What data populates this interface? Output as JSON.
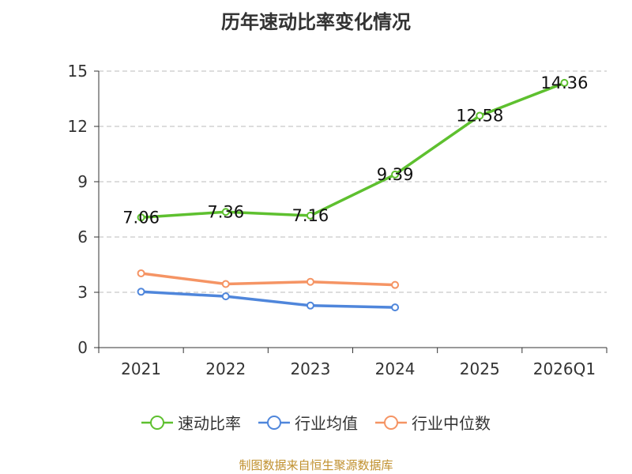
{
  "chart_data": {
    "type": "line",
    "title": "历年速动比率变化情况",
    "categories": [
      "2021",
      "2022",
      "2023",
      "2024",
      "2025",
      "2026Q1"
    ],
    "ylim": [
      0,
      15
    ],
    "yticks": [
      0,
      3,
      6,
      9,
      12,
      15
    ],
    "grid": true,
    "legend_position": "bottom",
    "series": [
      {
        "name": "速动比率",
        "color": "#5ec02f",
        "values": [
          7.06,
          7.36,
          7.16,
          9.39,
          12.58,
          14.36
        ],
        "labels": [
          "7.06",
          "7.36",
          "7.16",
          "9.39",
          "12.58",
          "14.36"
        ]
      },
      {
        "name": "行业均值",
        "color": "#4f86db",
        "values": [
          3.03,
          2.78,
          2.28,
          2.18,
          null,
          null
        ]
      },
      {
        "name": "行业中位数",
        "color": "#f59464",
        "values": [
          4.03,
          3.45,
          3.57,
          3.4,
          null,
          null
        ]
      }
    ],
    "source": "制图数据来自恒生聚源数据库"
  }
}
